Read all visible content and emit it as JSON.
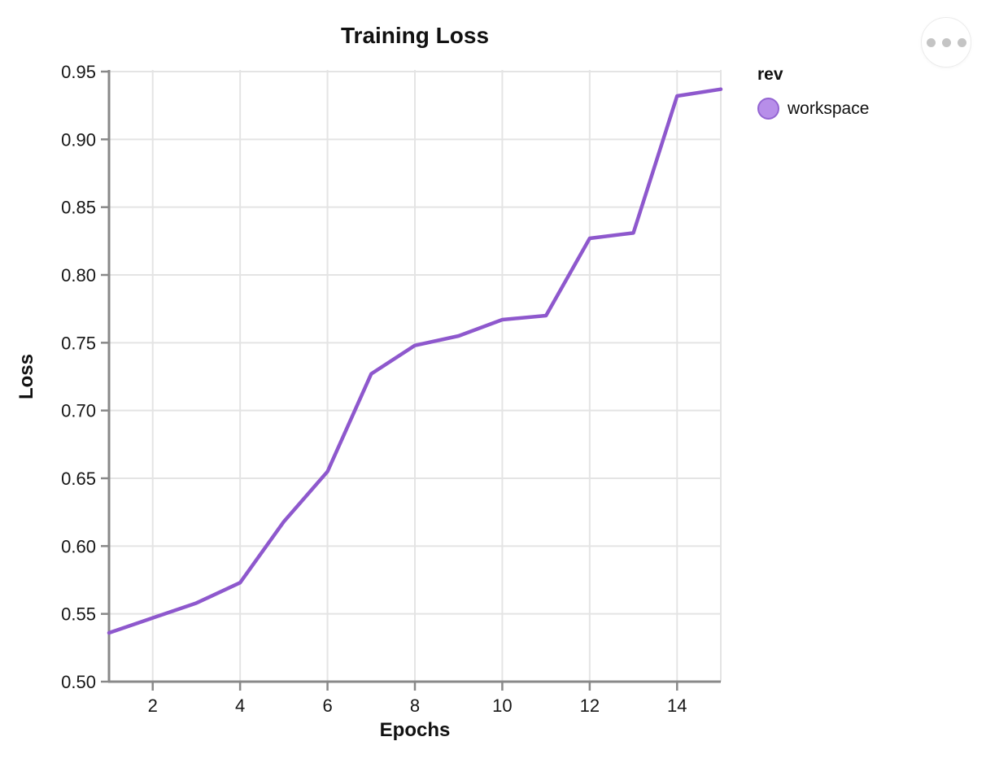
{
  "chart_data": {
    "type": "line",
    "title": "Training Loss",
    "xlabel": "Epochs",
    "ylabel": "Loss",
    "x": [
      1,
      2,
      3,
      4,
      5,
      6,
      7,
      8,
      9,
      10,
      11,
      12,
      13,
      14,
      15
    ],
    "series": [
      {
        "name": "workspace",
        "color": "#8e58cd",
        "values": [
          0.536,
          0.547,
          0.558,
          0.573,
          0.618,
          0.655,
          0.727,
          0.748,
          0.755,
          0.767,
          0.77,
          0.827,
          0.831,
          0.932,
          0.937
        ]
      }
    ],
    "xlim": [
      1,
      15
    ],
    "ylim": [
      0.5,
      0.95
    ],
    "x_ticks": [
      2,
      4,
      6,
      8,
      10,
      12,
      14
    ],
    "x_tick_labels": [
      "2",
      "4",
      "6",
      "8",
      "10",
      "12",
      "14"
    ],
    "y_ticks": [
      0.5,
      0.55,
      0.6,
      0.65,
      0.7,
      0.75,
      0.8,
      0.85,
      0.9,
      0.95
    ],
    "y_tick_labels": [
      "0.50",
      "0.55",
      "0.60",
      "0.65",
      "0.70",
      "0.75",
      "0.80",
      "0.85",
      "0.90",
      "0.95"
    ],
    "grid": true,
    "legend": {
      "title": "rev",
      "position": "right",
      "entries": [
        {
          "label": "workspace",
          "swatch_fill": "#b78ee9",
          "swatch_stroke": "#9465d2"
        }
      ]
    }
  },
  "colors": {
    "line": "#8e58cd",
    "grid": "#e4e4e4",
    "axis": "#898989",
    "tick_text": "#151515",
    "button_border": "#ebebeb",
    "button_dots": "#c4c4c4"
  },
  "icons": {
    "more_options": "ellipsis-icon"
  }
}
